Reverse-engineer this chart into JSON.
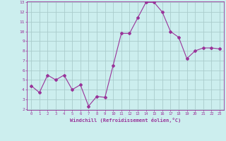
{
  "x": [
    0,
    1,
    2,
    3,
    4,
    5,
    6,
    7,
    8,
    9,
    10,
    11,
    12,
    13,
    14,
    15,
    16,
    17,
    18,
    19,
    20,
    21,
    22,
    23
  ],
  "y": [
    4.4,
    3.7,
    5.5,
    5.0,
    5.5,
    4.0,
    4.5,
    2.3,
    3.3,
    3.2,
    6.5,
    9.8,
    9.8,
    11.4,
    13.0,
    13.0,
    12.0,
    10.0,
    9.4,
    7.2,
    8.0,
    8.3,
    8.3,
    8.2
  ],
  "line_color": "#993399",
  "marker": "D",
  "marker_size": 2,
  "bg_color": "#cceeee",
  "grid_color": "#aacccc",
  "xlabel": "Windchill (Refroidissement éolien,°C)",
  "xlabel_color": "#993399",
  "tick_color": "#993399",
  "ylim": [
    2,
    13
  ],
  "xlim": [
    -0.5,
    23.5
  ],
  "yticks": [
    2,
    3,
    4,
    5,
    6,
    7,
    8,
    9,
    10,
    11,
    12,
    13
  ],
  "xticks": [
    0,
    1,
    2,
    3,
    4,
    5,
    6,
    7,
    8,
    9,
    10,
    11,
    12,
    13,
    14,
    15,
    16,
    17,
    18,
    19,
    20,
    21,
    22,
    23
  ]
}
